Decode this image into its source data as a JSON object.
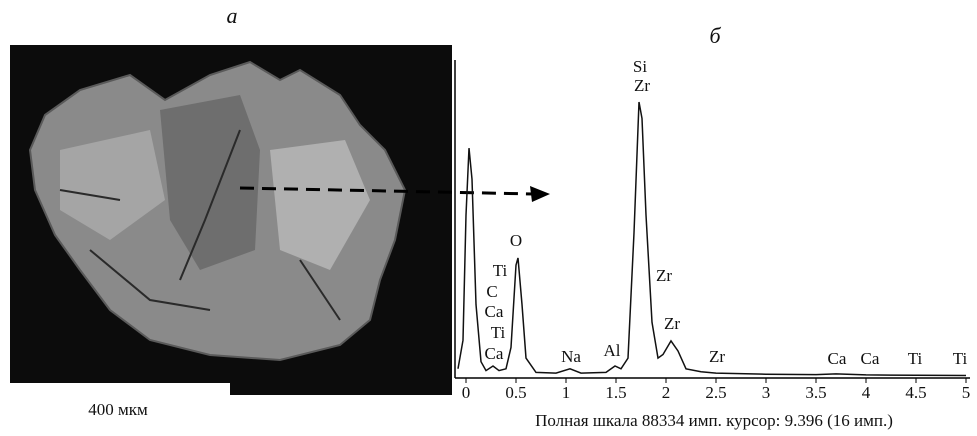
{
  "panel_a": {
    "label": "а",
    "scale": "400 мкм"
  },
  "chart_data": {
    "type": "line",
    "title": "б",
    "footer": "Полная шкала 88334 имп. курсор: 9.396 (16 имп.)",
    "x": [
      -0.08,
      -0.03,
      0.0,
      0.03,
      0.06,
      0.1,
      0.15,
      0.2,
      0.27,
      0.33,
      0.4,
      0.45,
      0.5,
      0.52,
      0.56,
      0.6,
      0.7,
      0.9,
      1.04,
      1.15,
      1.4,
      1.49,
      1.55,
      1.62,
      1.68,
      1.73,
      1.76,
      1.8,
      1.86,
      1.92,
      1.97,
      2.05,
      2.12,
      2.2,
      2.35,
      2.5,
      3.0,
      3.5,
      3.7,
      4.0,
      4.5,
      5.0
    ],
    "series": [
      {
        "color": "#111111",
        "values": [
          2000,
          10000,
          45000,
          63700,
          55000,
          20000,
          4000,
          1500,
          2800,
          1500,
          2000,
          8000,
          31000,
          33000,
          20000,
          5000,
          1000,
          800,
          2000,
          800,
          1000,
          2800,
          2000,
          5000,
          40000,
          76600,
          72000,
          45000,
          15000,
          5000,
          6000,
          9800,
          7000,
          2000,
          1200,
          800,
          500,
          400,
          600,
          300,
          200,
          150
        ]
      }
    ],
    "annotations": [
      "Si",
      "Zr",
      "O",
      "Ti",
      "C",
      "Ca",
      "Ti",
      "Ca",
      "Zr",
      "Zr",
      "Na",
      "Al",
      "Zr",
      "Ca",
      "Ca",
      "Ti",
      "Ti"
    ],
    "xlim": [
      -0.11,
      5.04
    ],
    "ylim": [
      0,
      88334
    ],
    "xticks": [
      0,
      0.5,
      1,
      1.5,
      2,
      2.5,
      3,
      3.5,
      4,
      4.5,
      5
    ]
  }
}
